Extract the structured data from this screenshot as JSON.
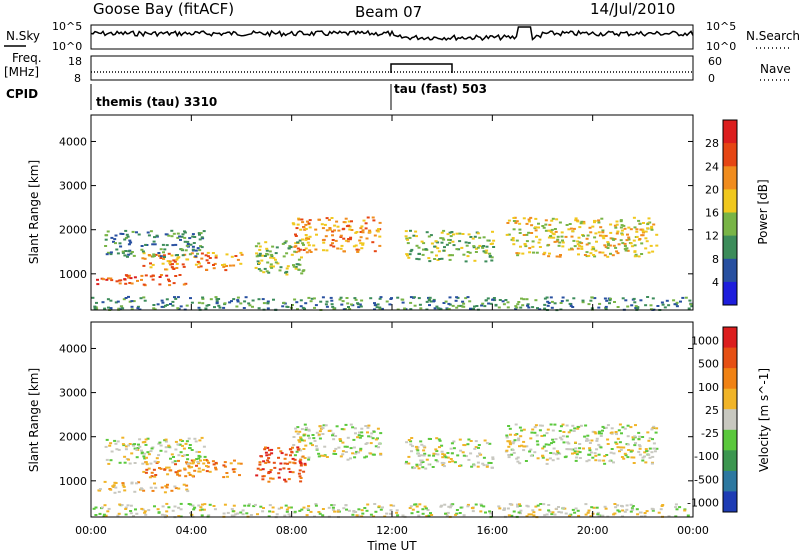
{
  "header": {
    "title": "Goose Bay (fitACF)",
    "beam": "Beam 07",
    "date": "14/Jul/2010"
  },
  "side_labels": {
    "nsky": "N.Sky",
    "nsearch": "N.Search",
    "freq": "Freq.",
    "freq_unit": "[MHz]",
    "nave": "Nave",
    "cpid": "CPID"
  },
  "noise_axis": {
    "left_top": "10^5",
    "left_bottom": "10^0",
    "right_top": "10^5",
    "right_bottom": "10^0"
  },
  "freq_axis": {
    "left_ticks": [
      "18",
      "8"
    ],
    "right_ticks": [
      "60",
      "0"
    ]
  },
  "cpid_labels": [
    "themis (tau) 3310",
    "tau (fast) 503"
  ],
  "chart_data": [
    {
      "type": "heatmap",
      "title": "",
      "ylabel": "Slant Range [km]",
      "xlabel": "",
      "xlim": [
        0,
        24
      ],
      "ylim": [
        180,
        4600
      ],
      "y_ticks": [
        "1000",
        "2000",
        "3000",
        "4000"
      ],
      "colorbar_label": "Power [dB]",
      "colorbar_ticks": [
        "4",
        "8",
        "12",
        "16",
        "20",
        "24",
        "28"
      ],
      "colors": [
        "#1e1edc",
        "#2850a0",
        "#3c8c5a",
        "#78b446",
        "#f0c81e",
        "#f08c1e",
        "#e64614",
        "#dc1e1e"
      ],
      "regions": [
        {
          "t0": 0.2,
          "t1": 3.8,
          "r0": 750,
          "r1": 1000,
          "level": 6
        },
        {
          "t0": 2.0,
          "t1": 6.0,
          "r0": 1100,
          "r1": 1500,
          "level": 5
        },
        {
          "t0": 0.5,
          "t1": 4.5,
          "r0": 1400,
          "r1": 2000,
          "level": 2
        },
        {
          "t0": 8.0,
          "t1": 11.5,
          "r0": 1500,
          "r1": 2300,
          "level": 5
        },
        {
          "t0": 6.5,
          "t1": 8.5,
          "r0": 1000,
          "r1": 1800,
          "level": 3
        },
        {
          "t0": 12.5,
          "t1": 16.0,
          "r0": 1300,
          "r1": 2000,
          "level": 3
        },
        {
          "t0": 16.5,
          "t1": 22.5,
          "r0": 1400,
          "r1": 2300,
          "level": 4
        },
        {
          "t0": 0.0,
          "t1": 24.0,
          "r0": 200,
          "r1": 500,
          "level": 2
        }
      ]
    },
    {
      "type": "heatmap",
      "title": "",
      "ylabel": "Slant Range [km]",
      "xlabel": "Time UT",
      "xlim": [
        0,
        24
      ],
      "ylim": [
        180,
        4600
      ],
      "x_ticks": [
        "00:00",
        "04:00",
        "08:00",
        "12:00",
        "16:00",
        "20:00",
        "00:00"
      ],
      "y_ticks": [
        "1000",
        "2000",
        "3000",
        "4000"
      ],
      "colorbar_label": "Velocity [m s^-1]",
      "colorbar_ticks": [
        "1000",
        "500",
        "100",
        "25",
        "-25",
        "-100",
        "-500",
        "-1000"
      ],
      "colors": [
        "#1e3cb4",
        "#2d78a0",
        "#3c9650",
        "#5ac83c",
        "#c8c8c0",
        "#f0b428",
        "#f08214",
        "#e65014",
        "#dc1e1e"
      ],
      "regions": [
        {
          "t0": 0.2,
          "t1": 3.8,
          "r0": 750,
          "r1": 1000,
          "level": 5
        },
        {
          "t0": 2.0,
          "t1": 6.0,
          "r0": 1100,
          "r1": 1500,
          "level": 6
        },
        {
          "t0": 0.5,
          "t1": 4.5,
          "r0": 1400,
          "r1": 2000,
          "level": 4
        },
        {
          "t0": 8.0,
          "t1": 11.5,
          "r0": 1500,
          "r1": 2300,
          "level": 4
        },
        {
          "t0": 6.5,
          "t1": 8.5,
          "r0": 1000,
          "r1": 1800,
          "level": 7
        },
        {
          "t0": 12.5,
          "t1": 16.0,
          "r0": 1300,
          "r1": 2000,
          "level": 4
        },
        {
          "t0": 16.5,
          "t1": 22.5,
          "r0": 1400,
          "r1": 2300,
          "level": 4
        },
        {
          "t0": 0.0,
          "t1": 24.0,
          "r0": 200,
          "r1": 500,
          "level": 4
        }
      ]
    }
  ]
}
